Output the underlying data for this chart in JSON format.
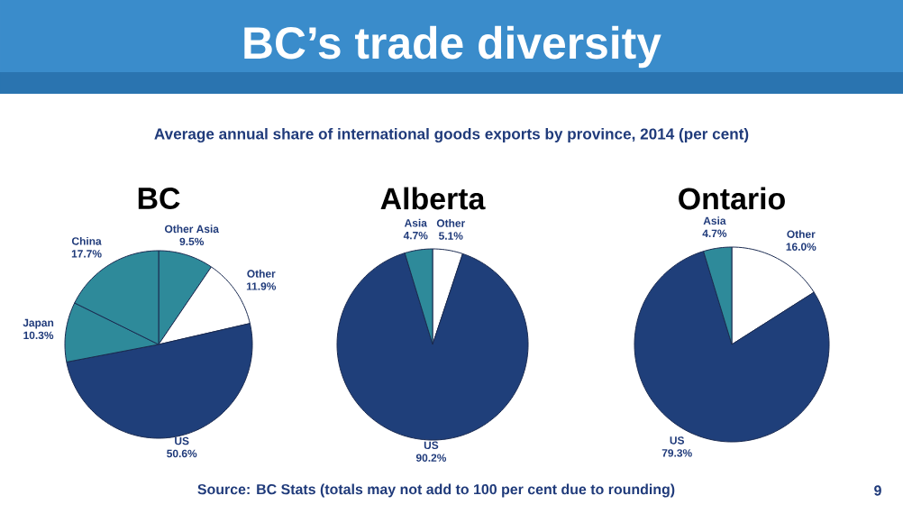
{
  "chart_data": [
    {
      "type": "other",
      "title": "BC’s trade diversity",
      "subtitle": "Average annual share of international goods exports by province, 2014 (per cent)",
      "annotations": [
        "Source:  BC Stats (totals may not add to 100 per cent due to rounding)",
        "9"
      ]
    },
    {
      "type": "pie",
      "title": "BC",
      "categories": [
        "Other Asia",
        "Other",
        "US",
        "Japan",
        "China"
      ],
      "values": [
        9.5,
        11.9,
        50.6,
        10.3,
        17.7
      ],
      "value_labels": [
        "9.5%",
        "11.9%",
        "50.6%",
        "10.3%",
        "17.7%"
      ],
      "colors": [
        "#2e8a9a",
        "#ffffff",
        "#1f3f7a",
        "#2e8a9a",
        "#2e8a9a"
      ]
    },
    {
      "type": "pie",
      "title": "Alberta",
      "categories": [
        "Other",
        "US",
        "Asia"
      ],
      "values": [
        5.1,
        90.2,
        4.7
      ],
      "value_labels": [
        "5.1%",
        "90.2%",
        "4.7%"
      ],
      "colors": [
        "#ffffff",
        "#1f3f7a",
        "#2e8a9a"
      ]
    },
    {
      "type": "pie",
      "title": "Ontario",
      "categories": [
        "Other",
        "US",
        "Asia"
      ],
      "values": [
        16.0,
        79.3,
        4.7
      ],
      "value_labels": [
        "16.0%",
        "79.3%",
        "4.7%"
      ],
      "colors": [
        "#ffffff",
        "#1f3f7a",
        "#2e8a9a"
      ]
    }
  ]
}
